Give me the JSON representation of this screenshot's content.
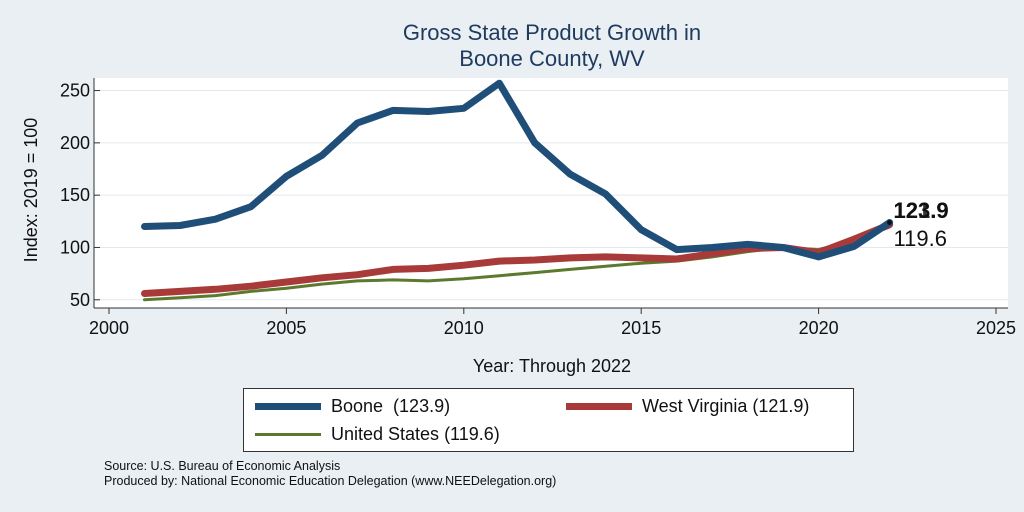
{
  "chart_data": {
    "type": "line",
    "title": [
      "Gross State Product Growth in",
      "Boone County, WV"
    ],
    "xlabel": "Year: Through 2022",
    "ylabel": "Index: 2019 = 100",
    "xlim": [
      2000,
      2025
    ],
    "ylim": [
      45,
      262
    ],
    "xticks": [
      2000,
      2005,
      2010,
      2015,
      2020,
      2025
    ],
    "yticks": [
      50,
      100,
      150,
      200,
      250
    ],
    "grid": true,
    "legend_position": "bottom",
    "x": [
      2001,
      2002,
      2003,
      2004,
      2005,
      2006,
      2007,
      2008,
      2009,
      2010,
      2011,
      2012,
      2013,
      2014,
      2015,
      2016,
      2017,
      2018,
      2019,
      2020,
      2021,
      2022
    ],
    "series": [
      {
        "name": "Boone",
        "legend_label": "Boone  (123.9)",
        "color": "#1f4e79",
        "end_label": "123.9",
        "values": [
          120,
          121,
          127,
          139,
          168,
          188,
          219,
          231,
          230,
          233,
          257,
          200,
          170,
          151,
          117,
          98,
          100,
          103,
          100,
          91,
          101,
          123.9
        ]
      },
      {
        "name": "West Virginia",
        "legend_label": "West Virginia (121.9)",
        "color": "#a83a3a",
        "end_label": "121.9",
        "values": [
          56,
          58,
          60,
          63,
          67,
          71,
          74,
          79,
          80,
          83,
          87,
          88,
          90,
          91,
          90,
          89,
          94,
          99,
          100,
          95,
          108,
          121.9
        ]
      },
      {
        "name": "United States",
        "legend_label": "United States (119.6)",
        "color": "#5b7a2e",
        "end_label": "119.6",
        "values": [
          50,
          52,
          54,
          58,
          61,
          65,
          68,
          69,
          68,
          70,
          73,
          76,
          79,
          82,
          85,
          87,
          91,
          96,
          100,
          98,
          107,
          119.6
        ]
      }
    ]
  },
  "source_lines": [
    "Source: U.S. Bureau of Economic Analysis",
    "Produced by: National Economic Education Delegation (www.NEEDelegation.org)"
  ]
}
